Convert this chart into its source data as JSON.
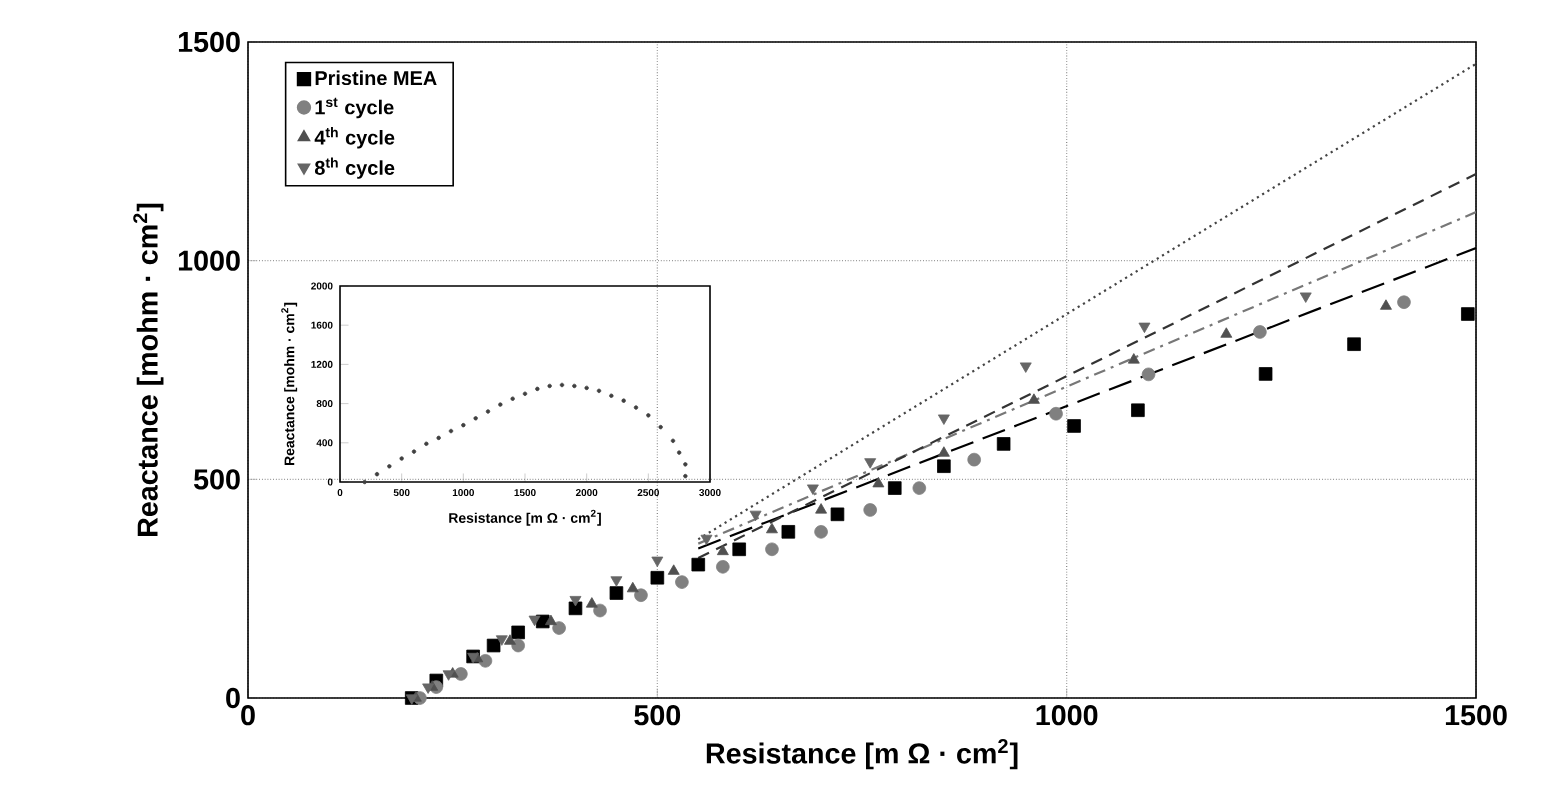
{
  "chart_data": [
    {
      "type": "scatter",
      "xlabel": "Resistance [m Ω · cm$^{2}$]",
      "ylabel": "Reactance [mohm · cm$^{2}$]",
      "xlim": [
        0,
        1500
      ],
      "ylim": [
        0,
        1500
      ],
      "xticks": [
        0,
        500,
        1000,
        1500
      ],
      "yticks": [
        0,
        500,
        1000,
        1500
      ],
      "grid": true,
      "legend": "top left",
      "series": [
        {
          "name": "Pristine MEA",
          "color": "#000000",
          "marker": "square",
          "x": [
            200,
            230,
            275,
            300,
            330,
            360,
            400,
            450,
            500,
            550,
            600,
            660,
            720,
            790,
            850,
            923,
            1009,
            1087,
            1243,
            1351,
            1490
          ],
          "values": [
            0,
            40,
            95,
            120,
            150,
            175,
            205,
            240,
            275,
            305,
            340,
            380,
            420,
            480,
            530,
            581,
            622,
            658,
            741,
            809,
            878
          ]
        },
        {
          "name": "1$^{st}$ cycle",
          "color": "#808080",
          "marker": "circle",
          "x": [
            210,
            230,
            260,
            290,
            330,
            380,
            430,
            480,
            530,
            580,
            640,
            700,
            760,
            820,
            887,
            987,
            1100,
            1236,
            1412
          ],
          "values": [
            0,
            25,
            55,
            85,
            120,
            160,
            200,
            235,
            265,
            300,
            340,
            380,
            430,
            480,
            545,
            650,
            740,
            837,
            905
          ]
        },
        {
          "name": "4$^{th}$ cycle",
          "color": "#505050",
          "marker": "triangle",
          "x": [
            205,
            225,
            250,
            280,
            320,
            370,
            420,
            470,
            520,
            580,
            640,
            700,
            770,
            850,
            960,
            1082,
            1195,
            1390
          ],
          "values": [
            0,
            25,
            55,
            90,
            130,
            175,
            215,
            250,
            290,
            335,
            385,
            430,
            490,
            560,
            681,
            773,
            832,
            896
          ]
        },
        {
          "name": "8$^{th}$ cycle",
          "color": "#666666",
          "marker": "triangle_down",
          "x": [
            200,
            220,
            245,
            275,
            310,
            350,
            400,
            450,
            500,
            560,
            620,
            690,
            760,
            850,
            950,
            1095,
            1292
          ],
          "values": [
            0,
            25,
            55,
            95,
            135,
            180,
            225,
            270,
            315,
            365,
            420,
            480,
            540,
            640,
            759,
            850,
            919
          ]
        },
        {
          "type": "line",
          "color": "#000000",
          "line_style": "longdashed",
          "x": [
            550,
            1500
          ],
          "values": [
            342,
            1029
          ]
        },
        {
          "type": "line",
          "color": "#777777",
          "line_style": "dashdot",
          "x": [
            550,
            1500
          ],
          "values": [
            353,
            1111
          ]
        },
        {
          "type": "line",
          "color": "#333333",
          "line_style": "dashed",
          "x": [
            550,
            1500
          ],
          "values": [
            320,
            1198
          ]
        },
        {
          "type": "line",
          "color": "#444444",
          "line_style": "dotted",
          "x": [
            550,
            1500
          ],
          "values": [
            363,
            1450
          ]
        }
      ]
    },
    {
      "type": "scatter",
      "xlabel": "Resistance [m Ω · cm$^{2}$]",
      "ylabel": "Reactance [mohm · cm$^{2}$]",
      "xlim": [
        0,
        3000
      ],
      "ylim": [
        0,
        2000
      ],
      "xticks": [
        0,
        500,
        1000,
        1500,
        2000,
        2500,
        3000
      ],
      "yticks": [
        0,
        400,
        800,
        1200,
        1600,
        2000
      ],
      "series": [
        {
          "color": "#404040",
          "marker": "circle",
          "x": [
            200,
            300,
            400,
            500,
            600,
            700,
            800,
            900,
            1000,
            1100,
            1200,
            1300,
            1400,
            1500,
            1600,
            1700,
            1800,
            1900,
            2000,
            2100,
            2200,
            2300,
            2400,
            2500,
            2600,
            2700,
            2750,
            2800,
            2800
          ],
          "values": [
            0,
            80,
            160,
            240,
            310,
            390,
            450,
            520,
            580,
            650,
            720,
            790,
            850,
            900,
            950,
            980,
            990,
            980,
            960,
            930,
            880,
            830,
            760,
            680,
            560,
            420,
            300,
            180,
            60
          ]
        }
      ]
    }
  ]
}
